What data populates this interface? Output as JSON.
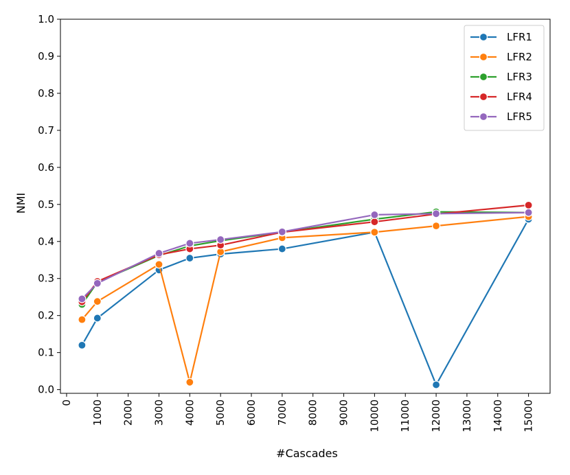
{
  "chart_data": {
    "type": "line",
    "title": "",
    "xlabel": "#Cascades",
    "ylabel": "NMI",
    "xlim": [
      -200,
      15700
    ],
    "ylim": [
      -0.01,
      1.0
    ],
    "x_ticks": [
      0,
      1000,
      2000,
      3000,
      4000,
      5000,
      6000,
      7000,
      8000,
      9000,
      10000,
      11000,
      12000,
      13000,
      14000,
      15000
    ],
    "y_ticks": [
      0.0,
      0.1,
      0.2,
      0.3,
      0.4,
      0.5,
      0.6,
      0.7,
      0.8,
      0.9,
      1.0
    ],
    "y_tick_labels": [
      "0.0",
      "0.1",
      "0.2",
      "0.3",
      "0.4",
      "0.5",
      "0.6",
      "0.7",
      "0.8",
      "0.9",
      "1.0"
    ],
    "x": [
      500,
      1000,
      3000,
      4000,
      5000,
      7000,
      10000,
      12000,
      15000
    ],
    "legend_position": "top-right",
    "grid": false,
    "series": [
      {
        "name": "LFR1",
        "color": "#1f77b4",
        "values": [
          0.12,
          0.193,
          0.323,
          0.355,
          0.366,
          0.38,
          0.425,
          0.013,
          0.46
        ]
      },
      {
        "name": "LFR2",
        "color": "#ff7f0e",
        "values": [
          0.189,
          0.238,
          0.338,
          0.02,
          0.372,
          0.41,
          0.425,
          0.442,
          0.467
        ]
      },
      {
        "name": "LFR3",
        "color": "#2ca02c",
        "values": [
          0.23,
          0.29,
          0.362,
          0.388,
          0.402,
          0.425,
          0.46,
          0.48,
          0.478
        ]
      },
      {
        "name": "LFR4",
        "color": "#d62728",
        "values": [
          0.237,
          0.292,
          0.364,
          0.38,
          0.39,
          0.425,
          0.453,
          0.474,
          0.498
        ]
      },
      {
        "name": "LFR5",
        "color": "#9467bd",
        "values": [
          0.245,
          0.287,
          0.368,
          0.395,
          0.405,
          0.426,
          0.472,
          0.475,
          0.478
        ]
      }
    ]
  }
}
